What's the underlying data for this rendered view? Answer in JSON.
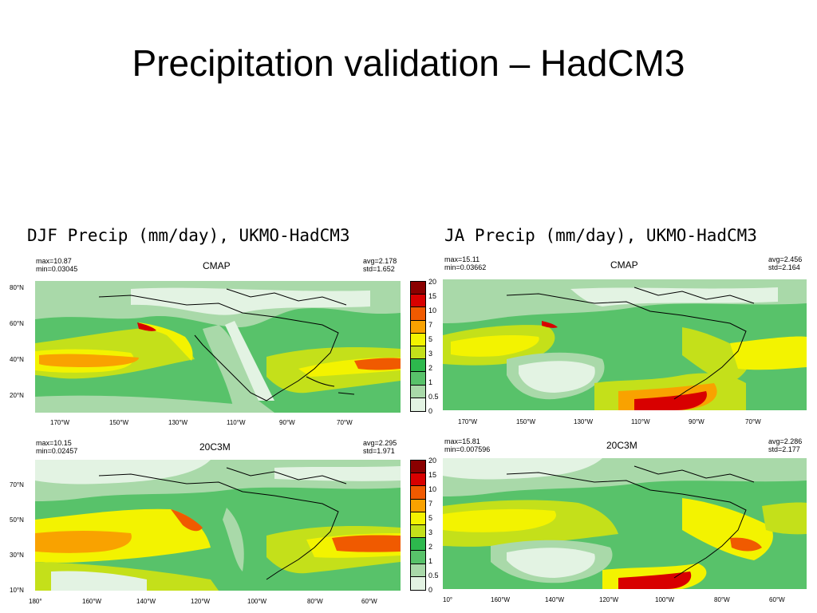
{
  "slide_title": "Precipitation validation – HadCM3",
  "colors": {
    "scale": [
      "#e3f3e3",
      "#a9d9a9",
      "#58c26a",
      "#2db84d",
      "#c4e01a",
      "#f3f300",
      "#f9a200",
      "#f05a00",
      "#d80000",
      "#8a0000"
    ],
    "ocean": "#5fc560"
  },
  "chart_data": [
    {
      "type": "heatmap",
      "figure_title": "DJF Precip (mm/day), UKMO-HadCM3",
      "panel_title": "CMAP",
      "stats": {
        "max": "max=10.87",
        "min": "min=0.03045",
        "avg": "avg=2.178",
        "std": "std=1.652"
      },
      "xticks": [
        "170°W",
        "150°W",
        "130°W",
        "110°W",
        "90°W",
        "70°W"
      ],
      "yticks": [
        "80°N",
        "60°N",
        "40°N",
        "20°N"
      ],
      "colorbar": [
        "20",
        "15",
        "10",
        "7",
        "5",
        "3",
        "2",
        "1",
        "0.5",
        "0"
      ]
    },
    {
      "type": "heatmap",
      "figure_title": "JA Precip (mm/day), UKMO-HadCM3",
      "panel_title": "CMAP",
      "stats": {
        "max": "max=15.11",
        "min": "min=0.03662",
        "avg": "avg=2.456",
        "std": "std=2.164"
      },
      "xticks": [
        "170°W",
        "150°W",
        "130°W",
        "110°W",
        "90°W",
        "70°W"
      ],
      "yticks": [],
      "colorbar": [
        "20",
        "15",
        "10",
        "7",
        "5",
        "3",
        "2",
        "1",
        "0.5",
        "0"
      ]
    },
    {
      "type": "heatmap",
      "figure_title": "",
      "panel_title": "20C3M",
      "stats": {
        "max": "max=10.15",
        "min": "min=0.02457",
        "avg": "avg=2.295",
        "std": "std=1.971"
      },
      "xticks": [
        "180°",
        "160°W",
        "140°W",
        "120°W",
        "100°W",
        "80°W",
        "60°W"
      ],
      "yticks": [
        "70°N",
        "50°N",
        "30°N",
        "10°N"
      ],
      "colorbar": [
        "20",
        "15",
        "10",
        "7",
        "5",
        "3",
        "2",
        "1",
        "0.5",
        "0"
      ]
    },
    {
      "type": "heatmap",
      "figure_title": "",
      "panel_title": "20C3M",
      "stats": {
        "max": "max=15.81",
        "min": "min=0.007596",
        "avg": "avg=2.286",
        "std": "std=2.177"
      },
      "xticks": [
        "10°",
        "160°W",
        "140°W",
        "120°W",
        "100°W",
        "80°W",
        "60°W"
      ],
      "yticks": [],
      "colorbar": [
        "20",
        "15",
        "10",
        "7",
        "5",
        "3",
        "2",
        "1",
        "0.5",
        "0"
      ]
    }
  ]
}
